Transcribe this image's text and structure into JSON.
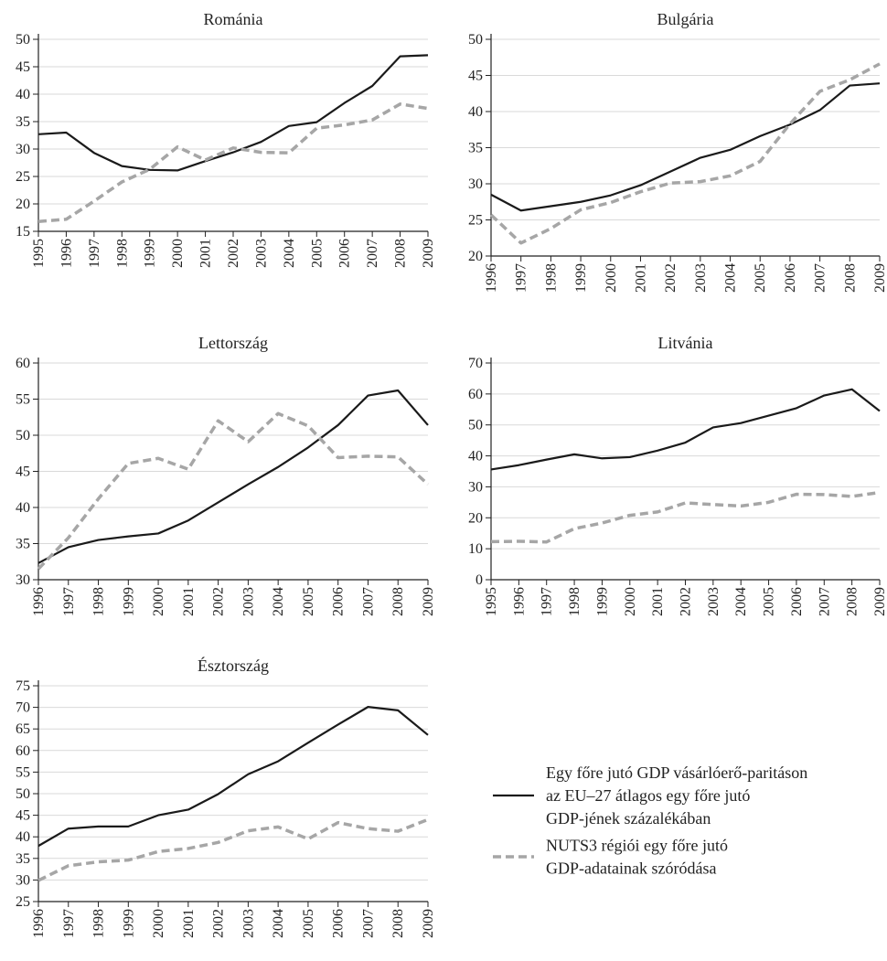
{
  "chart_data": [
    {
      "type": "line",
      "title": "Románia",
      "x": [
        1995,
        1996,
        1997,
        1998,
        1999,
        2000,
        2001,
        2002,
        2003,
        2004,
        2005,
        2006,
        2007,
        2008,
        2009
      ],
      "xlim": [
        1995,
        2009
      ],
      "xticks": [
        1995,
        1996,
        1997,
        1998,
        1999,
        2000,
        2001,
        2002,
        2003,
        2004,
        2005,
        2006,
        2007,
        2008,
        2009
      ],
      "ylim": [
        15,
        50
      ],
      "yticks": [
        15,
        20,
        25,
        30,
        35,
        40,
        45,
        50
      ],
      "grid": true,
      "series": [
        {
          "color": "#1a1a1a",
          "dash": false,
          "values": [
            32.7,
            33,
            29.3,
            26.9,
            26.2,
            26.1,
            27.8,
            29.4,
            31.3,
            34.2,
            34.9,
            38.4,
            41.5,
            46.9,
            47.1
          ]
        },
        {
          "color": "#a6a6a6",
          "dash": true,
          "values": [
            16.8,
            17.2,
            20.5,
            24,
            26.3,
            30.4,
            28,
            30.2,
            29.4,
            29.3,
            33.8,
            34.4,
            35.3,
            38.2,
            37.4
          ]
        }
      ]
    },
    {
      "type": "line",
      "title": "Bulgária",
      "x": [
        1996,
        1997,
        1998,
        1999,
        2000,
        2001,
        2002,
        2003,
        2004,
        2005,
        2006,
        2007,
        2008,
        2009
      ],
      "xlim": [
        1996,
        2009
      ],
      "xticks": [
        1996,
        1997,
        1998,
        1999,
        2000,
        2001,
        2002,
        2003,
        2004,
        2005,
        2006,
        2007,
        2008,
        2009
      ],
      "ylim": [
        20,
        50
      ],
      "yticks": [
        20,
        25,
        30,
        35,
        40,
        45,
        50
      ],
      "grid": true,
      "series": [
        {
          "color": "#1a1a1a",
          "dash": false,
          "values": [
            28.5,
            26.3,
            26.9,
            27.5,
            28.4,
            29.8,
            31.7,
            33.6,
            34.7,
            36.6,
            38.2,
            40.2,
            43.6,
            43.9
          ]
        },
        {
          "color": "#a6a6a6",
          "dash": true,
          "values": [
            25.7,
            21.8,
            23.8,
            26.4,
            27.4,
            28.9,
            30.1,
            30.3,
            31.1,
            33.1,
            38.3,
            42.8,
            44.4,
            46.6
          ]
        }
      ]
    },
    {
      "type": "line",
      "title": "Lettország",
      "x": [
        1996,
        1997,
        1998,
        1999,
        2000,
        2001,
        2002,
        2003,
        2004,
        2005,
        2006,
        2007,
        2008,
        2009
      ],
      "xlim": [
        1996,
        2009
      ],
      "xticks": [
        1996,
        1997,
        1998,
        1999,
        2000,
        2001,
        2002,
        2003,
        2004,
        2005,
        2006,
        2007,
        2008,
        2009
      ],
      "ylim": [
        30,
        60
      ],
      "yticks": [
        30,
        35,
        40,
        45,
        50,
        55,
        60
      ],
      "grid": true,
      "series": [
        {
          "color": "#1a1a1a",
          "dash": false,
          "values": [
            32.3,
            34.5,
            35.5,
            36,
            36.4,
            38.2,
            40.7,
            43.2,
            45.6,
            48.3,
            51.4,
            55.5,
            56.2,
            51.4
          ]
        },
        {
          "color": "#a6a6a6",
          "dash": true,
          "values": [
            31.5,
            35.8,
            41.2,
            46.1,
            46.8,
            45.3,
            52,
            49.1,
            53,
            51.3,
            46.9,
            47.1,
            47,
            43.2
          ]
        }
      ]
    },
    {
      "type": "line",
      "title": "Litvánia",
      "x": [
        1995,
        1996,
        1997,
        1998,
        1999,
        2000,
        2001,
        2002,
        2003,
        2004,
        2005,
        2006,
        2007,
        2008,
        2009
      ],
      "xlim": [
        1995,
        2009
      ],
      "xticks": [
        1995,
        1996,
        1997,
        1998,
        1999,
        2000,
        2001,
        2002,
        2003,
        2004,
        2005,
        2006,
        2007,
        2008,
        2009
      ],
      "ylim": [
        0,
        70
      ],
      "yticks": [
        0,
        10,
        20,
        30,
        40,
        50,
        60,
        70
      ],
      "grid": true,
      "series": [
        {
          "color": "#1a1a1a",
          "dash": false,
          "values": [
            35.6,
            37,
            38.8,
            40.5,
            39.2,
            39.6,
            41.7,
            44.3,
            49.2,
            50.6,
            53,
            55.4,
            59.5,
            61.5,
            54.5
          ]
        },
        {
          "color": "#a6a6a6",
          "dash": true,
          "values": [
            12.3,
            12.4,
            12.2,
            16.5,
            18.3,
            20.8,
            21.9,
            24.8,
            24.3,
            23.8,
            25,
            27.6,
            27.5,
            26.9,
            28.2
          ]
        }
      ]
    },
    {
      "type": "line",
      "title": "Észtország",
      "x": [
        1996,
        1997,
        1998,
        1999,
        2000,
        2001,
        2002,
        2003,
        2004,
        2005,
        2006,
        2007,
        2008,
        2009
      ],
      "xlim": [
        1996,
        2009
      ],
      "xticks": [
        1996,
        1997,
        1998,
        1999,
        2000,
        2001,
        2002,
        2003,
        2004,
        2005,
        2006,
        2007,
        2008,
        2009
      ],
      "ylim": [
        25,
        75
      ],
      "yticks": [
        25,
        30,
        35,
        40,
        45,
        50,
        55,
        60,
        65,
        70,
        75
      ],
      "grid": true,
      "series": [
        {
          "color": "#1a1a1a",
          "dash": false,
          "values": [
            37.9,
            41.9,
            42.4,
            42.4,
            45,
            46.3,
            49.9,
            54.5,
            57.5,
            61.8,
            66,
            70.1,
            69.3,
            63.6
          ]
        },
        {
          "color": "#a6a6a6",
          "dash": true,
          "values": [
            29.9,
            33.3,
            34.2,
            34.6,
            36.6,
            37.3,
            38.7,
            41.4,
            42.3,
            39.5,
            43.3,
            41.9,
            41.3,
            44
          ]
        }
      ]
    }
  ],
  "legend": [
    {
      "color": "#1a1a1a",
      "dash": false,
      "lines": [
        "Egy főre jutó GDP vásárlóerő-paritáson",
        "az EU–27 átlagos egy főre jutó",
        "GDP-jének százalékában"
      ]
    },
    {
      "color": "#a6a6a6",
      "dash": true,
      "lines": [
        "NUTS3 régiói egy főre jutó",
        "GDP-adatainak szóródása"
      ]
    }
  ]
}
